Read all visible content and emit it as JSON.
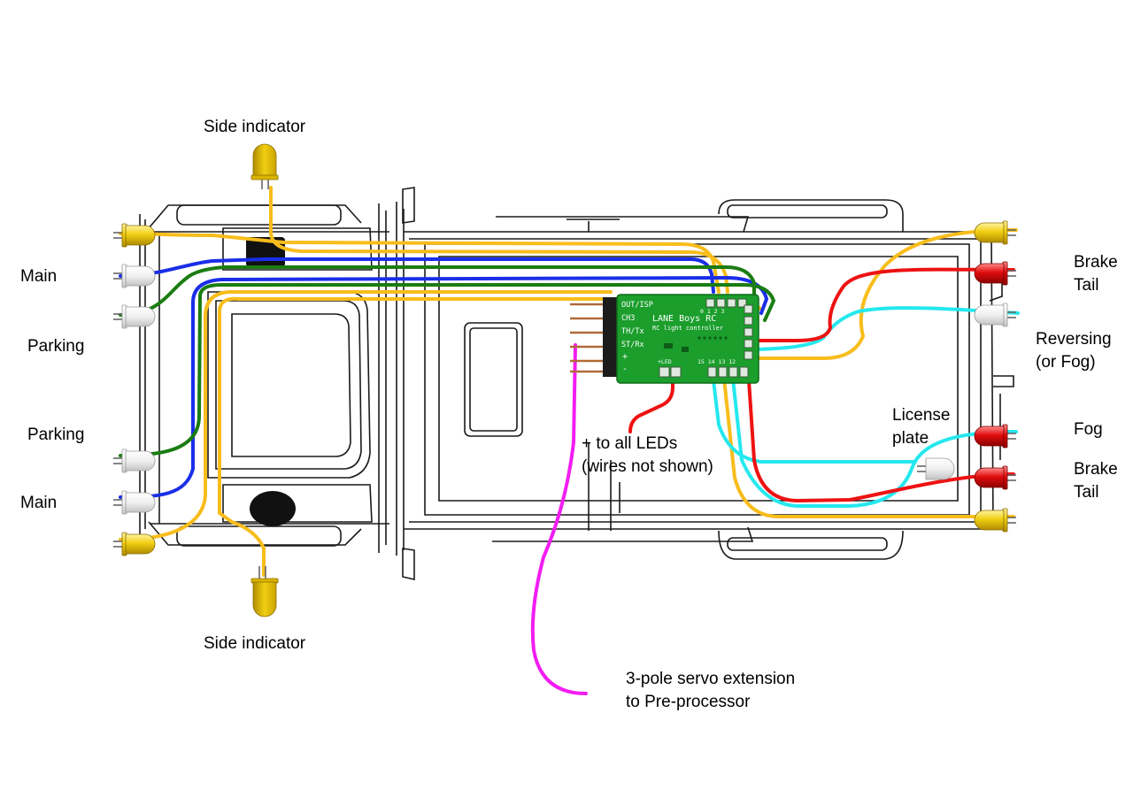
{
  "labels": {
    "side_indicator_top": "Side indicator",
    "side_indicator_bottom": "Side indicator",
    "main_top": "Main",
    "parking_top": "Parking",
    "parking_bottom": "Parking",
    "main_bottom": "Main",
    "brake_tail_top": "Brake\nTail",
    "reversing": "Reversing\n(or Fog)",
    "license_plate": "License\nplate",
    "fog": "Fog",
    "brake_tail_bottom": "Brake\nTail",
    "plus_all_leds": "+ to all LEDs\n(wires not shown)",
    "servo_extension": "3-pole servo extension\nto Pre-processor"
  },
  "board": {
    "title": "LANE Boys RC",
    "subtitle": "RC light controller",
    "pins_left": [
      "OUT/ISP",
      "CH3",
      "TH/Tx",
      "ST/Rx"
    ],
    "plus_minus": [
      "+",
      "-"
    ],
    "top_numbers": "0 1 2 3",
    "bottom_left": "+LED",
    "bottom_numbers": "15 14 13 12"
  },
  "colors": {
    "yellow_wire": "#f8bd1c",
    "blue_wire": "#1a2ee8",
    "green_wire": "#1a7d12",
    "cyan_wire": "#25e8ee",
    "red_wire": "#ee1212",
    "magenta_wire": "#f21df2",
    "board_green": "#1b9e2c"
  }
}
